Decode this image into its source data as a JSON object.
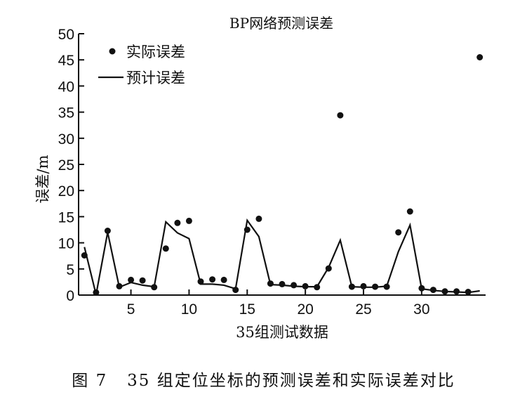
{
  "chart_data": {
    "type": "line",
    "title": "BP网络预测误差",
    "xlabel": "35组测试数据",
    "ylabel": "误差/m",
    "xlim": [
      0.5,
      35.5
    ],
    "ylim": [
      0,
      50
    ],
    "xticks": [
      5,
      10,
      15,
      20,
      25,
      30
    ],
    "yticks": [
      0,
      5,
      10,
      15,
      20,
      25,
      30,
      35,
      40,
      45,
      50
    ],
    "legend_position": "top-left",
    "grid": false,
    "series": [
      {
        "name": "实际误差",
        "style": "scatter",
        "x": [
          1,
          2,
          3,
          4,
          5,
          6,
          7,
          8,
          9,
          10,
          11,
          12,
          13,
          14,
          15,
          16,
          17,
          18,
          19,
          20,
          21,
          22,
          23,
          24,
          25,
          26,
          27,
          28,
          29,
          30,
          31,
          32,
          33,
          34,
          35
        ],
        "values": [
          7.6,
          0.5,
          12.3,
          1.7,
          2.9,
          2.8,
          1.5,
          8.9,
          13.8,
          14.2,
          2.6,
          3.0,
          2.9,
          1.0,
          12.5,
          14.6,
          2.2,
          2.1,
          1.9,
          1.7,
          1.5,
          5.1,
          34.4,
          1.6,
          1.7,
          1.6,
          1.6,
          12.0,
          16.0,
          1.3,
          1.0,
          0.7,
          0.7,
          0.6,
          45.5
        ]
      },
      {
        "name": "预计误差",
        "style": "line",
        "x": [
          1,
          2,
          3,
          4,
          5,
          6,
          7,
          8,
          9,
          10,
          11,
          12,
          13,
          14,
          15,
          16,
          17,
          18,
          19,
          20,
          21,
          22,
          23,
          24,
          25,
          26,
          27,
          28,
          29,
          30,
          31,
          32,
          33,
          34,
          35
        ],
        "values": [
          9.2,
          0.1,
          12.0,
          1.5,
          2.4,
          1.9,
          1.6,
          14.0,
          11.9,
          10.8,
          2.1,
          2.1,
          1.9,
          1.2,
          14.3,
          11.2,
          2.0,
          1.9,
          1.7,
          1.6,
          1.6,
          5.3,
          10.5,
          1.6,
          1.5,
          1.5,
          1.7,
          8.3,
          13.4,
          1.2,
          0.9,
          0.7,
          0.6,
          0.5,
          0.8
        ]
      }
    ]
  },
  "caption": "图 7   35 组定位坐标的预测误差和实际误差对比"
}
